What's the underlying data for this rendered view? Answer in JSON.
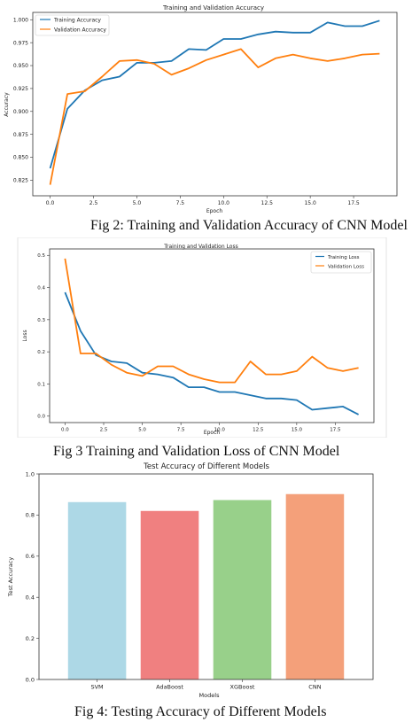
{
  "chart_data": [
    {
      "type": "line",
      "title": "Training and Validation Accuracy",
      "xlabel": "Epoch",
      "ylabel": "Accuracy",
      "x": [
        0,
        1,
        2,
        3,
        4,
        5,
        6,
        7,
        8,
        9,
        10,
        11,
        12,
        13,
        14,
        15,
        16,
        17,
        18,
        19
      ],
      "xlim": [
        -1,
        20
      ],
      "ylim": [
        0.808,
        1.008
      ],
      "xticks": [
        0.0,
        2.5,
        5.0,
        7.5,
        10.0,
        12.5,
        15.0,
        17.5
      ],
      "xtick_labels": [
        "0.0",
        "2.5",
        "5.0",
        "7.5",
        "10.0",
        "12.5",
        "15.0",
        "17.5"
      ],
      "yticks": [
        0.825,
        0.85,
        0.875,
        0.9,
        0.925,
        0.95,
        0.975,
        1.0
      ],
      "ytick_labels": [
        "0.825",
        "0.850",
        "0.875",
        "0.900",
        "0.925",
        "0.950",
        "0.975",
        "1.000"
      ],
      "legend_position": "top-left",
      "series": [
        {
          "name": "Training Accuracy",
          "color": "#1f77b4",
          "values": [
            0.838,
            0.903,
            0.923,
            0.934,
            0.938,
            0.953,
            0.953,
            0.955,
            0.968,
            0.967,
            0.979,
            0.979,
            0.984,
            0.987,
            0.986,
            0.986,
            0.997,
            0.993,
            0.993,
            0.999
          ]
        },
        {
          "name": "Validation Accuracy",
          "color": "#ff7f0e",
          "values": [
            0.82,
            0.919,
            0.922,
            0.938,
            0.955,
            0.956,
            0.952,
            0.94,
            0.947,
            0.956,
            0.962,
            0.968,
            0.948,
            0.958,
            0.962,
            0.958,
            0.955,
            0.958,
            0.962,
            0.963
          ]
        }
      ],
      "caption": "Fig 2: Training and Validation Accuracy of CNN Model"
    },
    {
      "type": "line",
      "title": "Training and Validation Loss",
      "xlabel": "Epoch",
      "ylabel": "Loss",
      "x": [
        0,
        1,
        2,
        3,
        4,
        5,
        6,
        7,
        8,
        9,
        10,
        11,
        12,
        13,
        14,
        15,
        16,
        17,
        18,
        19
      ],
      "xlim": [
        -1,
        20
      ],
      "ylim": [
        -0.02,
        0.52
      ],
      "xticks": [
        0.0,
        2.5,
        5.0,
        7.5,
        10.0,
        12.5,
        15.0,
        17.5
      ],
      "xtick_labels": [
        "0.0",
        "2.5",
        "5.0",
        "7.5",
        "10.0",
        "12.5",
        "15.0",
        "17.5"
      ],
      "yticks": [
        0.0,
        0.1,
        0.2,
        0.3,
        0.4,
        0.5
      ],
      "ytick_labels": [
        "0.0",
        "0.1",
        "0.2",
        "0.3",
        "0.4",
        "0.5"
      ],
      "legend_position": "top-right",
      "series": [
        {
          "name": "Training Loss",
          "color": "#1f77b4",
          "values": [
            0.385,
            0.265,
            0.19,
            0.17,
            0.165,
            0.135,
            0.13,
            0.12,
            0.09,
            0.09,
            0.075,
            0.075,
            0.065,
            0.055,
            0.055,
            0.05,
            0.02,
            0.025,
            0.03,
            0.005
          ]
        },
        {
          "name": "Validation Loss",
          "color": "#ff7f0e",
          "values": [
            0.49,
            0.195,
            0.195,
            0.16,
            0.135,
            0.125,
            0.155,
            0.155,
            0.13,
            0.115,
            0.105,
            0.105,
            0.17,
            0.13,
            0.13,
            0.14,
            0.185,
            0.15,
            0.14,
            0.15
          ]
        }
      ],
      "caption": "Fig 3 Training and Validation Loss of CNN Model"
    },
    {
      "type": "bar",
      "title": "Test Accuracy of Different Models",
      "xlabel": "Models",
      "ylabel": "Test Accuracy",
      "categories": [
        "SVM",
        "AdaBoost",
        "XGBoost",
        "CNN"
      ],
      "values": [
        0.863,
        0.82,
        0.873,
        0.902
      ],
      "colors": [
        "#add8e6",
        "#f08080",
        "#98d08a",
        "#f4a07a"
      ],
      "ylim": [
        0,
        1.0
      ],
      "yticks": [
        0.0,
        0.2,
        0.4,
        0.6,
        0.8,
        1.0
      ],
      "ytick_labels": [
        "0.0",
        "0.2",
        "0.4",
        "0.6",
        "0.8",
        "1.0"
      ],
      "caption": "Fig 4: Testing Accuracy of Different Models"
    }
  ]
}
